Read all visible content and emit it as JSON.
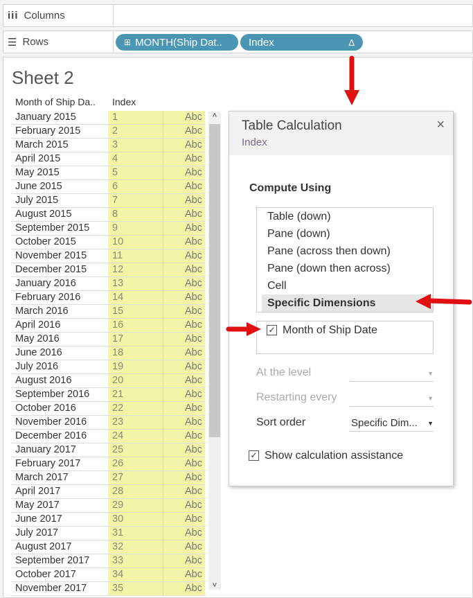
{
  "shelves": {
    "columns": {
      "icon": "columns-icon",
      "label": "Columns"
    },
    "rows": {
      "icon": "rows-icon",
      "label": "Rows",
      "pills": [
        {
          "label": "MONTH(Ship Dat..",
          "icon": "expand-plus-icon"
        },
        {
          "label": "Index",
          "icon": "delta-icon",
          "icon_glyph": "Δ"
        }
      ]
    }
  },
  "sheet": {
    "title": "Sheet 2",
    "headers": [
      "Month of Ship Da..",
      "Index"
    ],
    "rows": [
      [
        "January 2015",
        "1",
        "Abc"
      ],
      [
        "February 2015",
        "2",
        "Abc"
      ],
      [
        "March 2015",
        "3",
        "Abc"
      ],
      [
        "April 2015",
        "4",
        "Abc"
      ],
      [
        "May 2015",
        "5",
        "Abc"
      ],
      [
        "June 2015",
        "6",
        "Abc"
      ],
      [
        "July 2015",
        "7",
        "Abc"
      ],
      [
        "August 2015",
        "8",
        "Abc"
      ],
      [
        "September 2015",
        "9",
        "Abc"
      ],
      [
        "October 2015",
        "10",
        "Abc"
      ],
      [
        "November 2015",
        "11",
        "Abc"
      ],
      [
        "December 2015",
        "12",
        "Abc"
      ],
      [
        "January 2016",
        "13",
        "Abc"
      ],
      [
        "February 2016",
        "14",
        "Abc"
      ],
      [
        "March 2016",
        "15",
        "Abc"
      ],
      [
        "April 2016",
        "16",
        "Abc"
      ],
      [
        "May 2016",
        "17",
        "Abc"
      ],
      [
        "June 2016",
        "18",
        "Abc"
      ],
      [
        "July 2016",
        "19",
        "Abc"
      ],
      [
        "August 2016",
        "20",
        "Abc"
      ],
      [
        "September 2016",
        "21",
        "Abc"
      ],
      [
        "October 2016",
        "22",
        "Abc"
      ],
      [
        "November 2016",
        "23",
        "Abc"
      ],
      [
        "December 2016",
        "24",
        "Abc"
      ],
      [
        "January 2017",
        "25",
        "Abc"
      ],
      [
        "February 2017",
        "26",
        "Abc"
      ],
      [
        "March 2017",
        "27",
        "Abc"
      ],
      [
        "April 2017",
        "28",
        "Abc"
      ],
      [
        "May 2017",
        "29",
        "Abc"
      ],
      [
        "June 2017",
        "30",
        "Abc"
      ],
      [
        "July 2017",
        "31",
        "Abc"
      ],
      [
        "August 2017",
        "32",
        "Abc"
      ],
      [
        "September 2017",
        "33",
        "Abc"
      ],
      [
        "October 2017",
        "34",
        "Abc"
      ],
      [
        "November 2017",
        "35",
        "Abc"
      ]
    ]
  },
  "dialog": {
    "title": "Table Calculation",
    "subtitle": "Index",
    "close": "×",
    "compute_using_label": "Compute Using",
    "compute_options": [
      "Table (down)",
      "Pane (down)",
      "Pane (across then down)",
      "Pane (down then across)",
      "Cell",
      "Specific Dimensions"
    ],
    "selected_option": "Specific Dimensions",
    "dimensions": [
      {
        "label": "Month of Ship Date",
        "checked": true
      }
    ],
    "at_the_level": {
      "label": "At the level",
      "value": "",
      "disabled": true
    },
    "restarting_every": {
      "label": "Restarting every",
      "value": "",
      "disabled": true
    },
    "sort_order": {
      "label": "Sort order",
      "value": "Specific Dim..."
    },
    "show_assistance": {
      "label": "Show calculation assistance",
      "checked": true
    }
  },
  "colors": {
    "pill": "#4a96b4",
    "highlight": "#f4f4a8",
    "arrow": "#e01010"
  }
}
